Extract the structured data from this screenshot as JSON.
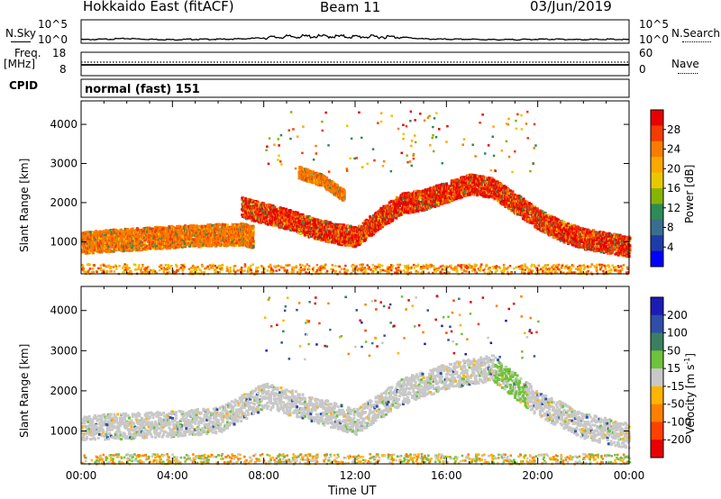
{
  "header": {
    "title": "Hokkaido East (fitACF)",
    "beam": "Beam 11",
    "date": "03/Jun/2019"
  },
  "noise_panel": {
    "left_label": "N.Sky",
    "right_label": "N.Search",
    "left_ticks": [
      "10^5",
      "10^0"
    ],
    "right_ticks": [
      "10^5",
      "10^0"
    ]
  },
  "freq_panel": {
    "left_label_1": "Freq.",
    "left_label_2": "[MHz]",
    "right_label": "Nave",
    "left_ticks": [
      "18",
      "8"
    ],
    "right_ticks": [
      "60",
      "0"
    ]
  },
  "cpid_panel": {
    "label": "CPID",
    "value": "normal (fast) 151"
  },
  "x_axis": {
    "label": "Time UT",
    "ticks": [
      "00:00",
      "04:00",
      "08:00",
      "12:00",
      "16:00",
      "20:00",
      "00:00"
    ]
  },
  "power_colorbar": {
    "title": "Power [dB]",
    "ticks": [
      "28",
      "24",
      "20",
      "16",
      "12",
      "8",
      "4"
    ],
    "colors": [
      "#e80000",
      "#f23c00",
      "#f97c00",
      "#ffa800",
      "#e8c800",
      "#88b400",
      "#2e8b57",
      "#3a6e8f",
      "#1e3ca8",
      "#0000ff"
    ]
  },
  "velocity_colorbar": {
    "title": "Velocity [m s",
    "title_sup": "-1",
    "title_end": "]",
    "ticks": [
      "200",
      "100",
      "50",
      "15",
      "-15",
      "-50",
      "-100",
      "-200"
    ],
    "colors": [
      "#1c1cb4",
      "#2e4ea8",
      "#3a8060",
      "#6ec23c",
      "#c8c8c8",
      "#ffb400",
      "#ff8000",
      "#ff4000",
      "#e80000"
    ]
  },
  "chart_data": [
    {
      "type": "line",
      "title": "N.Sky",
      "x": [
        0,
        1,
        2,
        3,
        4,
        5,
        6,
        7,
        8,
        9,
        10,
        11,
        12,
        13,
        14,
        15,
        16,
        17,
        18,
        19,
        20,
        21,
        22,
        23,
        24
      ],
      "series": [
        {
          "name": "N.Sky",
          "values": [
            0.5,
            0.6,
            0.8,
            0.6,
            0.5,
            0.6,
            0.6,
            0.7,
            1.0,
            1.3,
            1.4,
            1.4,
            1.3,
            1.3,
            1.2,
            0.7,
            0.6,
            0.6,
            0.5,
            0.5,
            0.6,
            0.6,
            0.5,
            0.6,
            0.5
          ]
        }
      ],
      "yscale": "log",
      "xlim": [
        0,
        24
      ]
    },
    {
      "type": "heatmap",
      "title": "Power [dB]",
      "xlabel": "Time UT",
      "ylabel": "Slant Range [km]",
      "xlim": [
        0,
        24
      ],
      "ylim": [
        180,
        4600
      ],
      "yticks": [
        1000,
        2000,
        3000,
        4000
      ],
      "clim": [
        0,
        32
      ],
      "bands": [
        {
          "t": [
            0,
            1,
            2,
            3,
            4,
            5,
            6,
            7,
            7.5
          ],
          "r": [
            1000,
            1050,
            1080,
            1120,
            1150,
            1180,
            1200,
            1220,
            1150
          ],
          "width": 280,
          "level": 24
        },
        {
          "t": [
            7,
            8,
            9,
            10,
            11,
            12,
            13,
            14,
            15,
            16,
            17,
            18,
            19,
            20,
            21,
            22,
            23,
            24
          ],
          "r": [
            1900,
            1750,
            1600,
            1400,
            1250,
            1150,
            1600,
            2000,
            2100,
            2300,
            2500,
            2400,
            2000,
            1600,
            1300,
            1100,
            1000,
            900
          ],
          "width": 260,
          "level": 28
        },
        {
          "t": [
            9.5,
            10.5,
            11.5
          ],
          "r": [
            2800,
            2600,
            2200
          ],
          "width": 150,
          "level": 20
        }
      ]
    },
    {
      "type": "heatmap",
      "title": "Velocity [m s-1]",
      "xlabel": "Time UT",
      "ylabel": "Slant Range [km]",
      "xlim": [
        0,
        24
      ],
      "ylim": [
        180,
        4600
      ],
      "yticks": [
        1000,
        2000,
        3000,
        4000
      ],
      "clim": [
        -250,
        250
      ],
      "bands": [
        {
          "t": [
            0,
            2,
            4,
            6,
            8,
            10,
            12,
            14,
            16,
            18,
            20,
            22,
            24
          ],
          "r": [
            1100,
            1150,
            1200,
            1300,
            1900,
            1600,
            1250,
            2000,
            2400,
            2600,
            1700,
            1150,
            900
          ],
          "width": 320,
          "level": 0
        }
      ]
    }
  ]
}
